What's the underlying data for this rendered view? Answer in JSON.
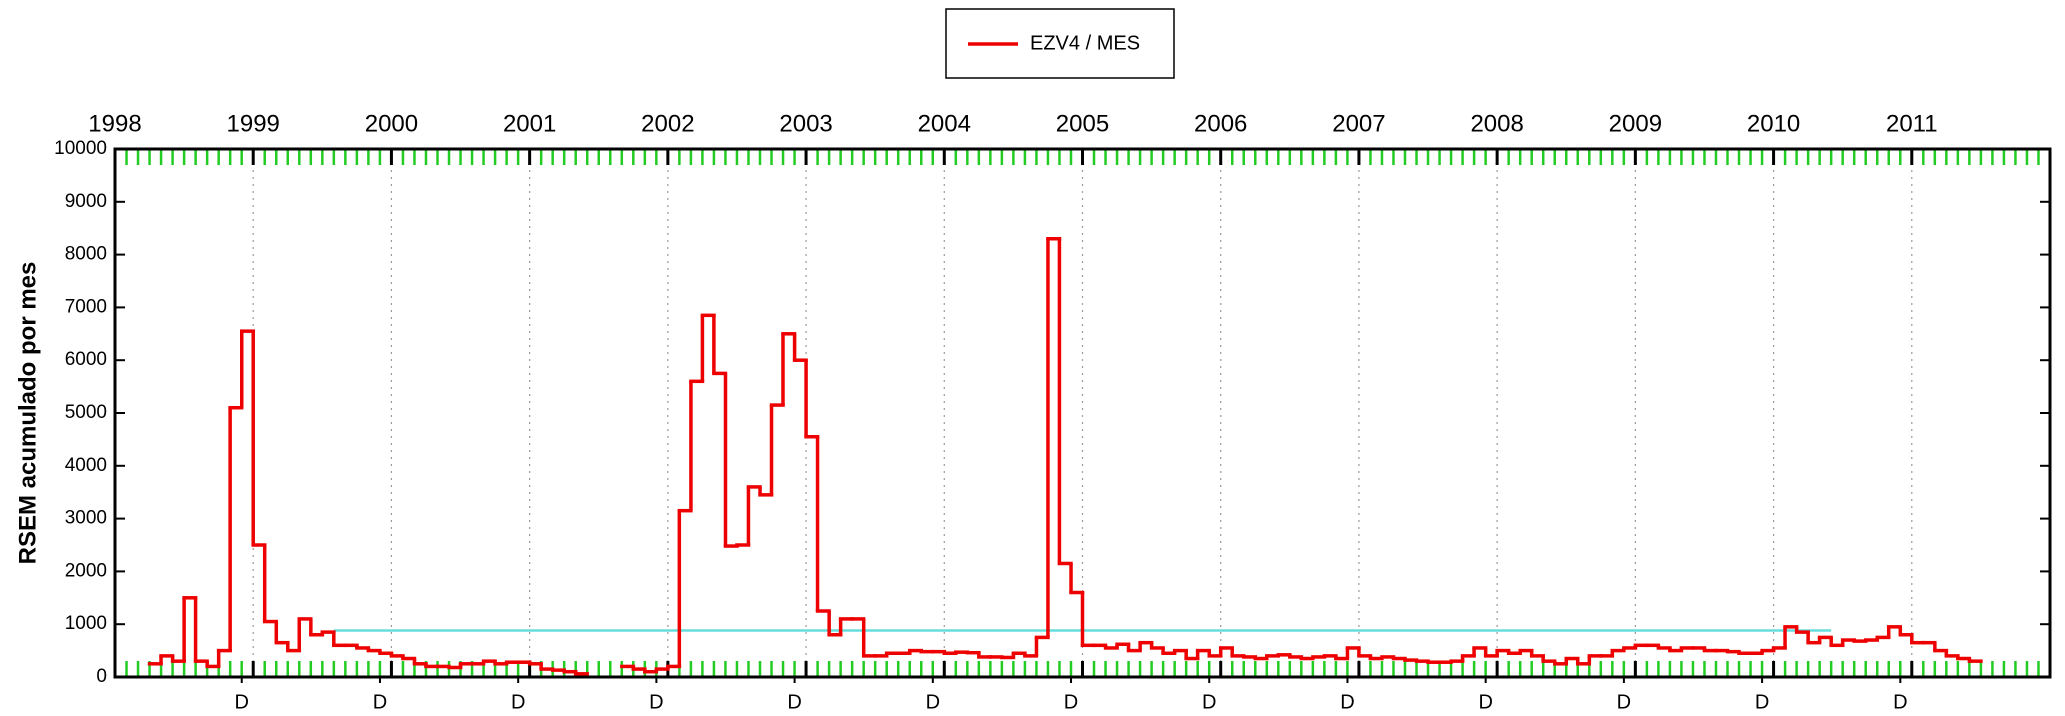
{
  "chart_data": {
    "type": "step",
    "ylabel": "RSEM acumulado por mes",
    "xlim": [
      1998,
      2012
    ],
    "ylim": [
      0,
      10000
    ],
    "xticks": [
      1998,
      1999,
      2000,
      2001,
      2002,
      2003,
      2004,
      2005,
      2006,
      2007,
      2008,
      2009,
      2010,
      2011
    ],
    "x2ticks": [
      {
        "value": 1998.917,
        "label": "D"
      },
      {
        "value": 1999.917,
        "label": "D"
      },
      {
        "value": 2000.917,
        "label": "D"
      },
      {
        "value": 2001.917,
        "label": "D"
      },
      {
        "value": 2002.917,
        "label": "D"
      },
      {
        "value": 2003.917,
        "label": "D"
      },
      {
        "value": 2004.917,
        "label": "D"
      },
      {
        "value": 2005.917,
        "label": "D"
      },
      {
        "value": 2006.917,
        "label": "D"
      },
      {
        "value": 2007.917,
        "label": "D"
      },
      {
        "value": 2008.917,
        "label": "D"
      },
      {
        "value": 2009.917,
        "label": "D"
      },
      {
        "value": 2010.917,
        "label": "D"
      }
    ],
    "yticks": [
      0,
      1000,
      2000,
      3000,
      4000,
      5000,
      6000,
      7000,
      8000,
      9000,
      10000
    ],
    "grid": true,
    "minor_tick_color": "#22cc22",
    "reference_line": {
      "value": 880,
      "xstart": 1999.583,
      "xend": 2010.417,
      "color": "#66dddd"
    },
    "x": [
      1998.25,
      1998.333,
      1998.417,
      1998.5,
      1998.583,
      1998.667,
      1998.75,
      1998.833,
      1998.917,
      1999,
      1999.083,
      1999.167,
      1999.25,
      1999.333,
      1999.417,
      1999.5,
      1999.583,
      1999.667,
      1999.75,
      1999.833,
      1999.917,
      2000,
      2000.083,
      2000.167,
      2000.25,
      2000.333,
      2000.417,
      2000.5,
      2000.583,
      2000.667,
      2000.75,
      2000.833,
      2000.917,
      2001,
      2001.083,
      2001.167,
      2001.25,
      2001.333,
      2001.417,
      2001.5,
      2001.583,
      2001.667,
      2001.75,
      2001.833,
      2001.917,
      2002,
      2002.083,
      2002.167,
      2002.25,
      2002.333,
      2002.417,
      2002.5,
      2002.583,
      2002.667,
      2002.75,
      2002.833,
      2002.917,
      2003,
      2003.083,
      2003.167,
      2003.25,
      2003.333,
      2003.417,
      2003.5,
      2003.583,
      2003.667,
      2003.75,
      2003.833,
      2003.917,
      2004,
      2004.083,
      2004.167,
      2004.25,
      2004.333,
      2004.417,
      2004.5,
      2004.583,
      2004.667,
      2004.75,
      2004.833,
      2004.917,
      2005,
      2005.083,
      2005.167,
      2005.25,
      2005.333,
      2005.417,
      2005.5,
      2005.583,
      2005.667,
      2005.75,
      2005.833,
      2005.917,
      2006,
      2006.083,
      2006.167,
      2006.25,
      2006.333,
      2006.417,
      2006.5,
      2006.583,
      2006.667,
      2006.75,
      2006.833,
      2006.917,
      2007,
      2007.083,
      2007.167,
      2007.25,
      2007.333,
      2007.417,
      2007.5,
      2007.583,
      2007.667,
      2007.75,
      2007.833,
      2007.917,
      2008,
      2008.083,
      2008.167,
      2008.25,
      2008.333,
      2008.417,
      2008.5,
      2008.583,
      2008.667,
      2008.75,
      2008.833,
      2008.917,
      2009,
      2009.083,
      2009.167,
      2009.25,
      2009.333,
      2009.417,
      2009.5,
      2009.583,
      2009.667,
      2009.75,
      2009.833,
      2009.917,
      2010,
      2010.083,
      2010.167,
      2010.25,
      2010.333,
      2010.417,
      2010.5,
      2010.583,
      2010.667,
      2010.75,
      2010.833,
      2010.917,
      2011,
      2011.083,
      2011.167,
      2011.25,
      2011.333,
      2011.417
    ],
    "series": [
      {
        "name": "EZV4 / MES",
        "color": "#ee0000",
        "values": [
          250,
          400,
          300,
          1500,
          300,
          200,
          500,
          5100,
          6550,
          2500,
          1050,
          650,
          500,
          1100,
          800,
          850,
          600,
          600,
          550,
          500,
          450,
          400,
          350,
          250,
          200,
          200,
          180,
          250,
          250,
          300,
          250,
          280,
          280,
          250,
          150,
          130,
          100,
          60,
          null,
          null,
          null,
          200,
          150,
          100,
          150,
          200,
          3150,
          5600,
          6850,
          5750,
          2480,
          2500,
          3600,
          3450,
          5150,
          6500,
          6000,
          4550,
          1250,
          800,
          1100,
          1100,
          400,
          400,
          450,
          450,
          500,
          480,
          480,
          450,
          470,
          460,
          380,
          380,
          370,
          450,
          400,
          750,
          8300,
          2150,
          1600,
          600,
          600,
          550,
          620,
          500,
          650,
          550,
          450,
          500,
          350,
          500,
          400,
          550,
          400,
          380,
          350,
          400,
          420,
          380,
          350,
          380,
          400,
          350,
          550,
          400,
          350,
          380,
          350,
          320,
          300,
          280,
          280,
          300,
          400,
          550,
          400,
          500,
          450,
          500,
          400,
          300,
          250,
          350,
          250,
          400,
          400,
          500,
          550,
          600,
          600,
          550,
          500,
          550,
          550,
          500,
          500,
          480,
          450,
          450,
          500,
          550,
          950,
          850,
          650,
          750,
          600,
          700,
          680,
          700,
          750,
          950,
          800,
          650,
          650,
          500,
          400,
          350,
          300
        ]
      }
    ]
  }
}
